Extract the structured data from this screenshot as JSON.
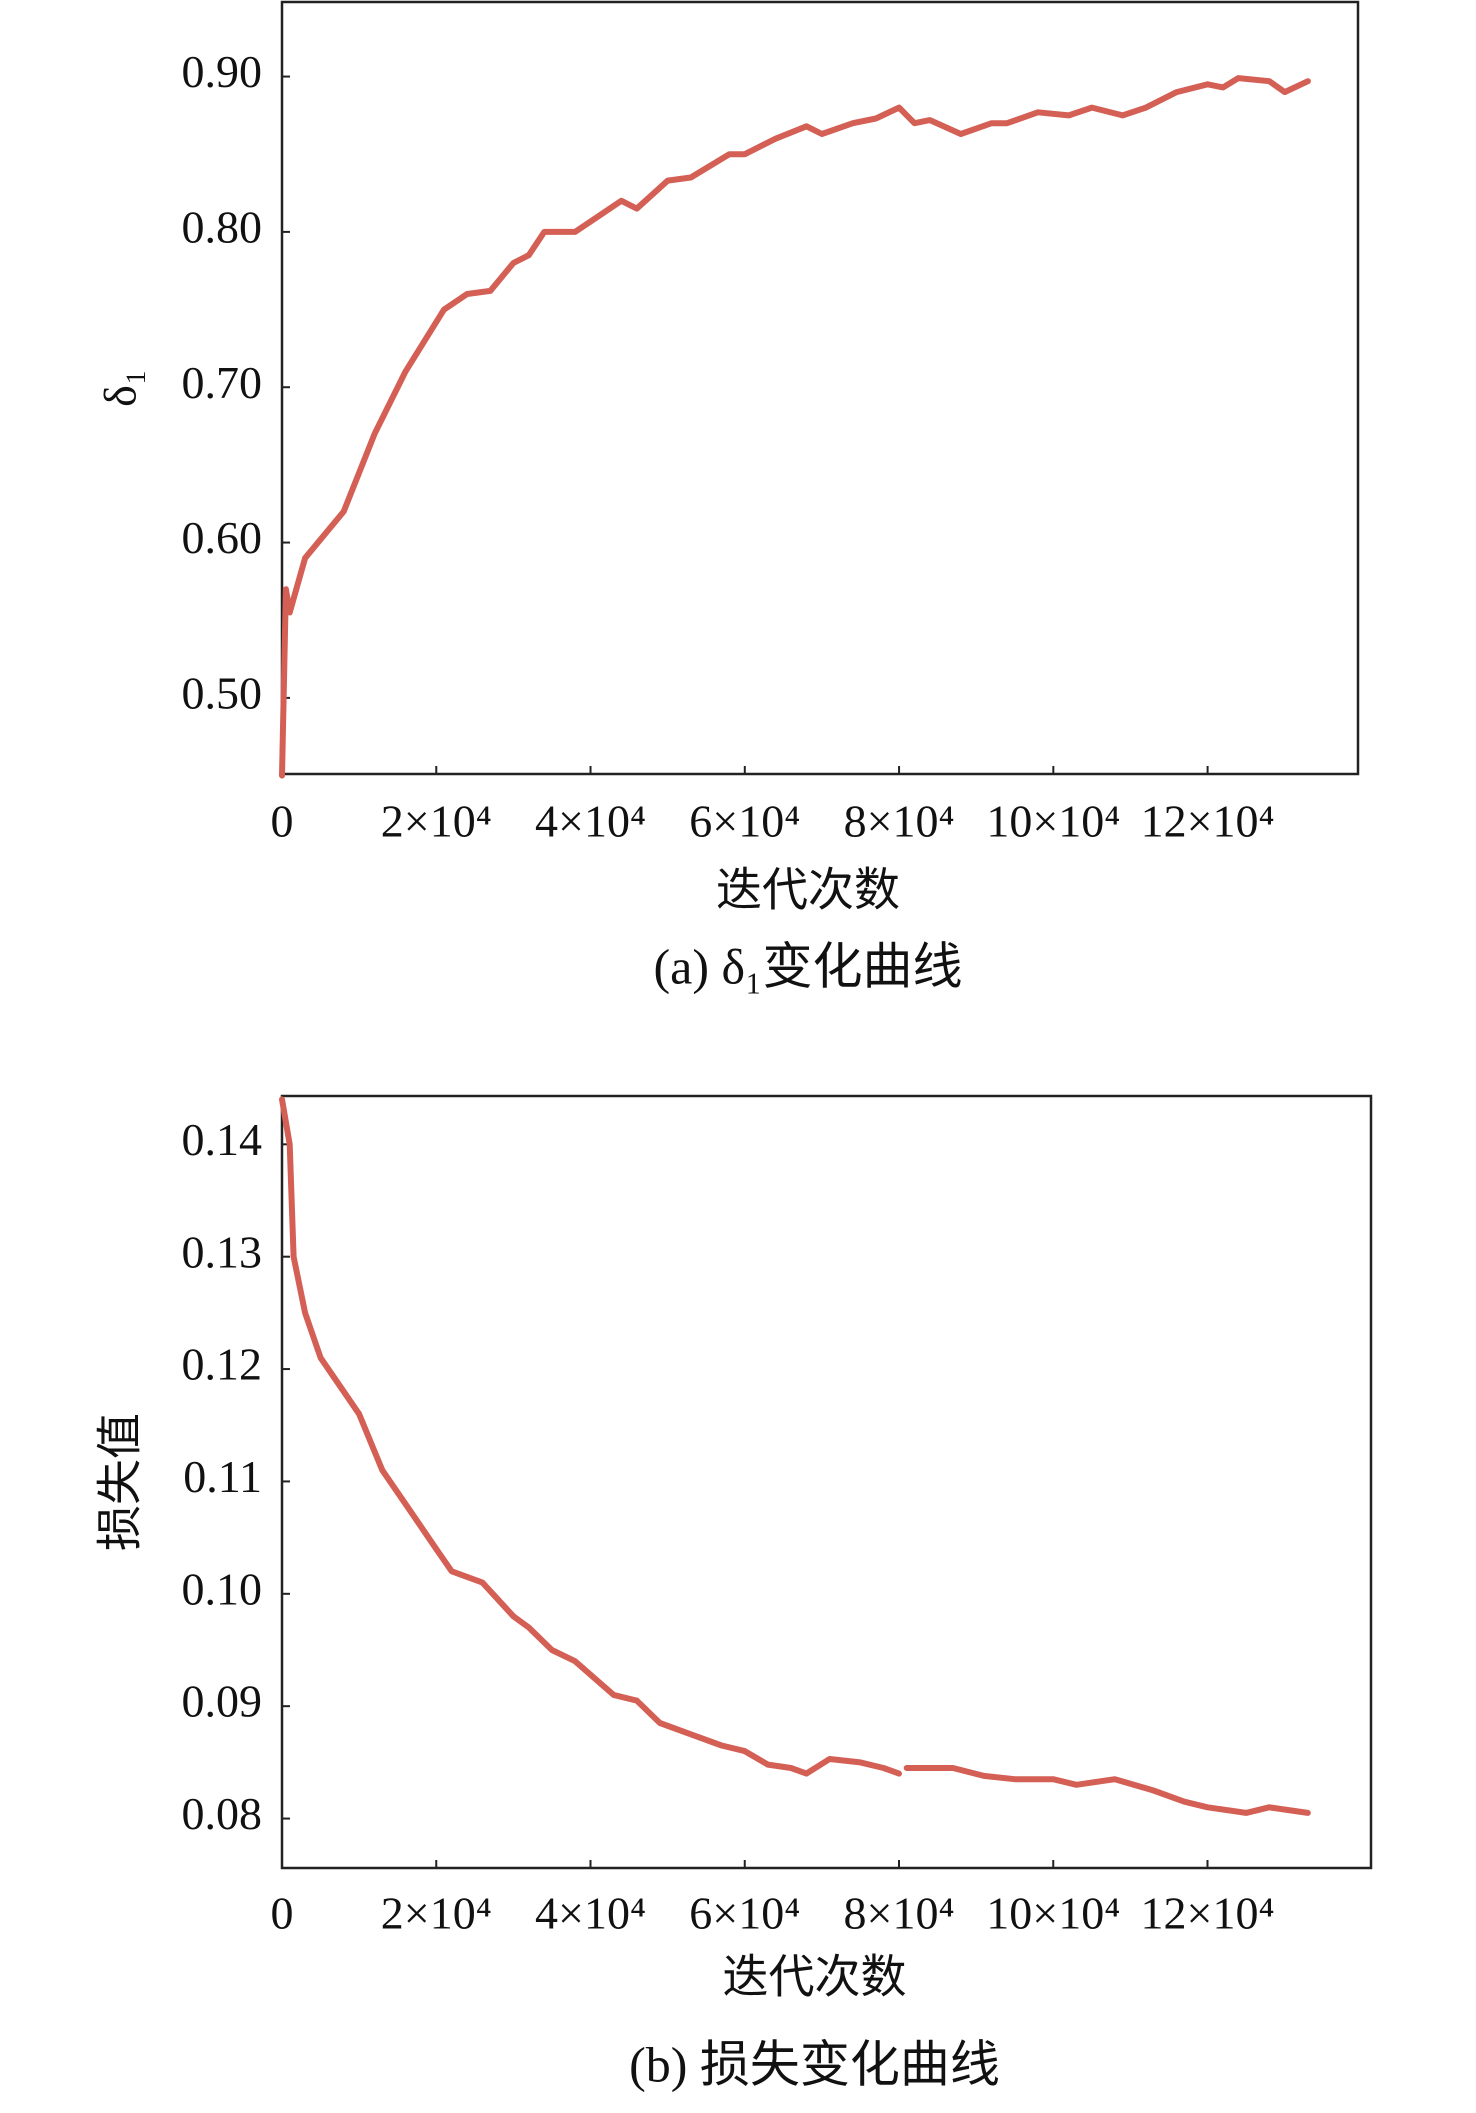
{
  "chart_data": [
    {
      "type": "line",
      "xlabel": "迭代次数",
      "ylabel": "δ₁",
      "caption": "(a) δ₁变化曲线",
      "color": "#d45f55",
      "grid": false,
      "x": [
        0,
        500,
        1000,
        3000,
        8000,
        12000,
        16000,
        21000,
        24000,
        27000,
        30000,
        32000,
        34000,
        38000,
        41000,
        44000,
        46000,
        50000,
        53000,
        58000,
        60000,
        64000,
        68000,
        70000,
        74000,
        77000,
        80000,
        82000,
        84000,
        88000,
        92000,
        94000,
        98000,
        102000,
        105000,
        109000,
        112000,
        116000,
        120000,
        122000,
        124000,
        128000,
        130000,
        133000
      ],
      "values": [
        0.45,
        0.57,
        0.555,
        0.59,
        0.62,
        0.67,
        0.71,
        0.75,
        0.76,
        0.762,
        0.78,
        0.785,
        0.8,
        0.8,
        0.81,
        0.82,
        0.815,
        0.833,
        0.835,
        0.85,
        0.85,
        0.86,
        0.868,
        0.863,
        0.87,
        0.873,
        0.88,
        0.87,
        0.872,
        0.863,
        0.87,
        0.87,
        0.877,
        0.875,
        0.88,
        0.875,
        0.88,
        0.89,
        0.895,
        0.893,
        0.899,
        0.897,
        0.89,
        0.897
      ],
      "xlim": [
        0,
        139500
      ],
      "ylim": [
        0.451,
        0.948
      ],
      "xticks": [
        0,
        {
          "value": 20000,
          "label": "2×10⁴"
        },
        {
          "value": 40000,
          "label": "4×10⁴"
        },
        {
          "value": 60000,
          "label": "6×10⁴"
        },
        {
          "value": 80000,
          "label": "8×10⁴"
        },
        {
          "value": 100000,
          "label": "10×10⁴"
        },
        {
          "value": 120000,
          "label": "12×10⁴"
        }
      ],
      "yticks": [
        {
          "value": 0.5,
          "label": "0.50"
        },
        {
          "value": 0.6,
          "label": "0.60"
        },
        {
          "value": 0.7,
          "label": "0.70"
        },
        {
          "value": 0.8,
          "label": "0.80"
        },
        {
          "value": 0.9,
          "label": "0.90"
        }
      ]
    },
    {
      "type": "line",
      "xlabel": "迭代次数",
      "ylabel": "损失值",
      "caption": "(b) 损失变化曲线",
      "color": "#d45f55",
      "grid": false,
      "x": [
        0,
        1000,
        1500,
        3000,
        5000,
        8000,
        10000,
        13000,
        17000,
        20000,
        22000,
        26000,
        30000,
        32000,
        35000,
        38000,
        43000,
        46000,
        49000,
        53000,
        57000,
        60000,
        63000,
        66000,
        68000,
        71000,
        75000,
        78000,
        80000,
        80500,
        81000,
        87000,
        91000,
        95000,
        100000,
        103000,
        108000,
        113000,
        117000,
        120000,
        125000,
        128000,
        133000
      ],
      "values": [
        0.144,
        0.14,
        0.13,
        0.125,
        0.121,
        0.118,
        0.116,
        0.111,
        0.107,
        0.104,
        0.102,
        0.101,
        0.098,
        0.097,
        0.095,
        0.094,
        0.091,
        0.0905,
        0.0885,
        0.0875,
        0.0865,
        0.086,
        0.0848,
        0.0845,
        0.084,
        0.0853,
        0.085,
        0.0845,
        0.084,
        null,
        0.0845,
        0.0845,
        0.0838,
        0.0835,
        0.0835,
        0.083,
        0.0835,
        0.0825,
        0.0815,
        0.081,
        0.0805,
        0.081,
        0.0805
      ],
      "xlim": [
        0,
        141200
      ],
      "ylim": [
        0.0756,
        0.1443
      ],
      "xticks": [
        0,
        {
          "value": 20000,
          "label": "2×10⁴"
        },
        {
          "value": 40000,
          "label": "4×10⁴"
        },
        {
          "value": 60000,
          "label": "6×10⁴"
        },
        {
          "value": 80000,
          "label": "8×10⁴"
        },
        {
          "value": 100000,
          "label": "10×10⁴"
        },
        {
          "value": 120000,
          "label": "12×10⁴"
        }
      ],
      "yticks": [
        {
          "value": 0.08,
          "label": "0.08"
        },
        {
          "value": 0.09,
          "label": "0.09"
        },
        {
          "value": 0.1,
          "label": "0.10"
        },
        {
          "value": 0.11,
          "label": "0.11"
        },
        {
          "value": 0.12,
          "label": "0.12"
        },
        {
          "value": 0.13,
          "label": "0.13"
        },
        {
          "value": 0.14,
          "label": "0.14"
        }
      ]
    }
  ]
}
